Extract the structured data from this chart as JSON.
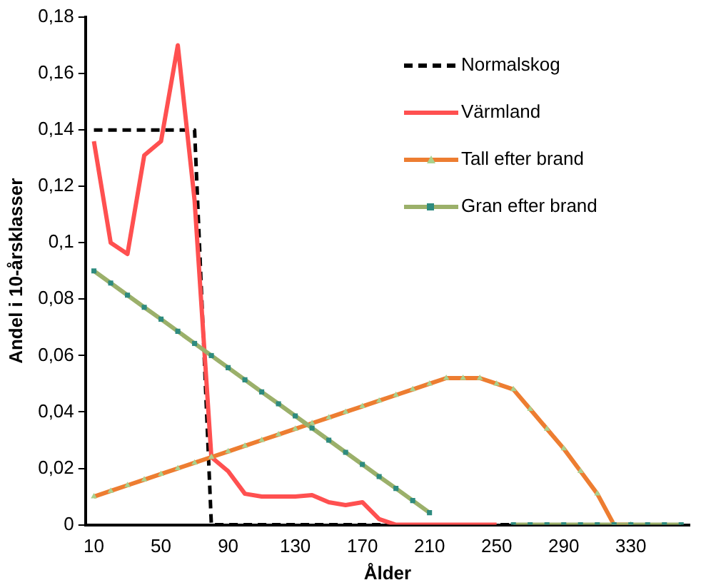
{
  "chart_data": {
    "type": "line",
    "xlabel": "Ålder",
    "ylabel": "Andel i 10-årsklasser",
    "categories": [
      "10",
      null,
      null,
      null,
      "50",
      null,
      null,
      null,
      "90",
      null,
      null,
      null,
      "130",
      null,
      null,
      null,
      "170",
      null,
      null,
      null,
      "210",
      null,
      null,
      null,
      "250",
      null,
      null,
      null,
      "290",
      null,
      null,
      null,
      "330",
      null,
      null,
      null
    ],
    "ylim": [
      0,
      0.18
    ],
    "yticks": [
      0,
      {
        "value": 0.02,
        "label": "0,02"
      },
      {
        "value": 0.04,
        "label": "0,04"
      },
      {
        "value": 0.06,
        "label": "0,06"
      },
      {
        "value": 0.08,
        "label": "0,08"
      },
      {
        "value": 0.1,
        "label": "0,1"
      },
      {
        "value": 0.12,
        "label": "0,12"
      },
      {
        "value": 0.14,
        "label": "0,14"
      },
      {
        "value": 0.16,
        "label": "0,16"
      },
      {
        "value": 0.18,
        "label": "0,18"
      }
    ],
    "grid": false,
    "legend": "top right",
    "series": [
      {
        "name": "Normalskog",
        "color": "#000000",
        "line_style": "dashed",
        "marker": "none",
        "values": [
          0.14,
          0.14,
          0.14,
          0.14,
          0.14,
          0.14,
          0.14,
          0,
          0,
          0,
          0,
          0,
          0,
          0,
          0,
          0,
          0,
          0,
          0,
          0,
          0,
          0,
          0,
          0,
          0,
          0,
          0,
          0,
          0,
          0,
          0,
          0,
          0,
          0,
          0,
          0
        ]
      },
      {
        "name": "Värmland",
        "color": "#ff5050",
        "line_style": "solid",
        "marker": "none",
        "values": [
          0.136,
          0.1,
          0.096,
          0.131,
          0.136,
          0.17,
          0.115,
          0.024,
          0.019,
          0.011,
          0.01,
          0.01,
          0.01,
          0.0105,
          0.008,
          0.007,
          0.008,
          0.002,
          0,
          0,
          0,
          0,
          0,
          0,
          0,
          null,
          null,
          null,
          null,
          null,
          null,
          null,
          null,
          null,
          null,
          null
        ]
      },
      {
        "name": "Tall efter brand",
        "color": "#ed7d31",
        "line_style": "solid",
        "marker": "triangle",
        "values": [
          0.01,
          0.012,
          0.014,
          0.016,
          0.018,
          0.02,
          0.022,
          0.024,
          0.026,
          0.028,
          0.03,
          0.032,
          0.034,
          0.036,
          0.038,
          0.04,
          0.042,
          0.044,
          0.046,
          0.048,
          0.05,
          0.052,
          0.052,
          0.052,
          0.05,
          0.048,
          0.041,
          0.034,
          0.027,
          0.019,
          0.011,
          0,
          0,
          null,
          null,
          null
        ]
      },
      {
        "name": "Gran efter brand",
        "color": "#9bb06a",
        "line_style": "solid",
        "marker": "square",
        "values": [
          0.09,
          0.0857,
          0.0814,
          0.0771,
          0.0729,
          0.0686,
          0.0643,
          0.06,
          0.0557,
          0.0514,
          0.0471,
          0.0429,
          0.0386,
          0.0343,
          0.03,
          0.0257,
          0.0214,
          0.0171,
          0.0129,
          0.0086,
          0.0043,
          null,
          null,
          null,
          null,
          0,
          0,
          0,
          0,
          0,
          0,
          0,
          0,
          0,
          0,
          0
        ]
      }
    ]
  }
}
